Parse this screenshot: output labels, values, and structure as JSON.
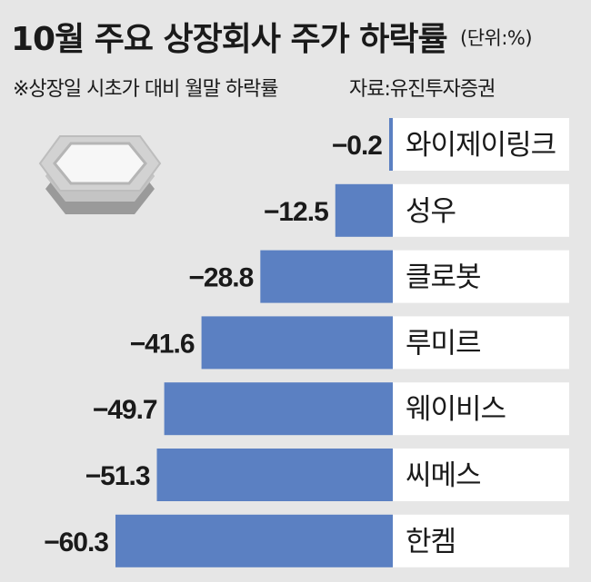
{
  "title": "10월 주요 상장회사 주가 하락률",
  "unit": "(단위:%)",
  "note": "※상장일 시초가 대비 월말 하락률",
  "source": "자료:유진투자증권",
  "colors": {
    "bar": "#5b80c2",
    "label_box": "#ffffff",
    "background": "#e6e6e6"
  },
  "chart_data": {
    "type": "bar",
    "orientation": "horizontal",
    "categories": [
      "와이제이링크",
      "성우",
      "클로봇",
      "루미르",
      "웨이비스",
      "씨메스",
      "한켐"
    ],
    "values": [
      -0.2,
      -12.5,
      -28.8,
      -41.6,
      -49.7,
      -51.3,
      -60.3
    ],
    "value_labels": [
      "−0.2",
      "−12.5",
      "−28.8",
      "−41.6",
      "−49.7",
      "−51.3",
      "−60.3"
    ],
    "xlim": [
      -60.3,
      0
    ]
  }
}
